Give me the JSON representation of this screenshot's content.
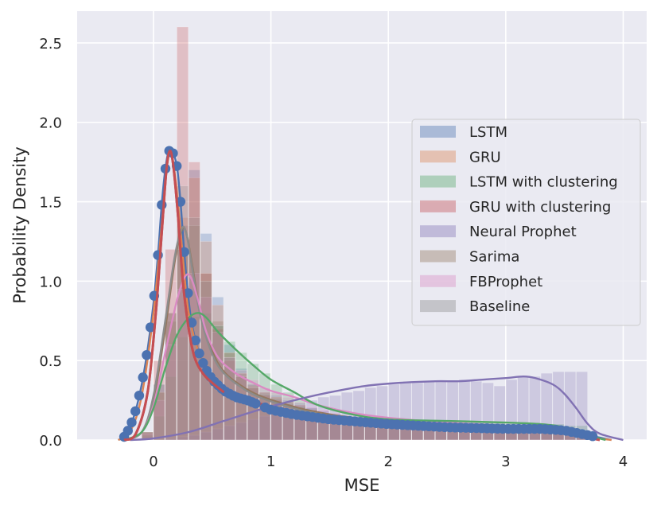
{
  "chart_data": {
    "type": "histogram-kde",
    "title": "",
    "xlabel": "MSE",
    "ylabel": "Probability Density",
    "xlim": [
      -0.65,
      4.2
    ],
    "ylim": [
      0,
      2.7
    ],
    "xticks": [
      0,
      1,
      2,
      3,
      4
    ],
    "yticks": [
      0.0,
      0.5,
      1.0,
      1.5,
      2.0,
      2.5
    ],
    "xtick_labels": [
      "0",
      "1",
      "2",
      "3",
      "4"
    ],
    "ytick_labels": [
      "0.0",
      "0.5",
      "1.0",
      "1.5",
      "2.0",
      "2.5"
    ],
    "grid": true,
    "background": "#eaeaf2",
    "legend_position": "center-right",
    "bin_width": 0.1,
    "series": [
      {
        "name": "LSTM",
        "color": "#4c72b0",
        "markers": true,
        "kde": [
          [
            -0.3,
            0.0
          ],
          [
            -0.25,
            0.02
          ],
          [
            -0.2,
            0.08
          ],
          [
            -0.15,
            0.19
          ],
          [
            -0.1,
            0.35
          ],
          [
            -0.05,
            0.57
          ],
          [
            0.0,
            0.86
          ],
          [
            0.04,
            1.18
          ],
          [
            0.07,
            1.48
          ],
          [
            0.1,
            1.7
          ],
          [
            0.13,
            1.82
          ],
          [
            0.16,
            1.82
          ],
          [
            0.2,
            1.72
          ],
          [
            0.23,
            1.5
          ],
          [
            0.26,
            1.2
          ],
          [
            0.29,
            0.95
          ],
          [
            0.32,
            0.76
          ],
          [
            0.36,
            0.62
          ],
          [
            0.4,
            0.52
          ],
          [
            0.45,
            0.44
          ],
          [
            0.5,
            0.38
          ],
          [
            0.6,
            0.31
          ],
          [
            0.7,
            0.27
          ],
          [
            0.8,
            0.25
          ],
          [
            0.9,
            0.22
          ],
          [
            1.0,
            0.19
          ],
          [
            1.2,
            0.16
          ],
          [
            1.5,
            0.13
          ],
          [
            2.0,
            0.1
          ],
          [
            2.5,
            0.08
          ],
          [
            3.0,
            0.07
          ],
          [
            3.3,
            0.07
          ],
          [
            3.5,
            0.06
          ],
          [
            3.7,
            0.03
          ],
          [
            3.9,
            0.0
          ]
        ],
        "hist": [
          0.05,
          0.35,
          0.8,
          1.35,
          1.7,
          1.3,
          0.9,
          0.6,
          0.45,
          0.35,
          0.3,
          0.28,
          0.25,
          0.23,
          0.2,
          0.18,
          0.16,
          0.15,
          0.13,
          0.12,
          0.11,
          0.1,
          0.1,
          0.09,
          0.09,
          0.08,
          0.08,
          0.08,
          0.07,
          0.07,
          0.07,
          0.07,
          0.07,
          0.06,
          0.06,
          0.06,
          0.06,
          0.06
        ]
      },
      {
        "name": "GRU",
        "color": "#dd8452",
        "markers": false,
        "kde": [
          [
            -0.3,
            0.0
          ],
          [
            -0.2,
            0.05
          ],
          [
            -0.1,
            0.28
          ],
          [
            0.0,
            0.8
          ],
          [
            0.07,
            1.35
          ],
          [
            0.12,
            1.75
          ],
          [
            0.16,
            1.78
          ],
          [
            0.2,
            1.55
          ],
          [
            0.25,
            1.15
          ],
          [
            0.3,
            0.8
          ],
          [
            0.4,
            0.52
          ],
          [
            0.5,
            0.4
          ],
          [
            0.6,
            0.33
          ],
          [
            0.8,
            0.26
          ],
          [
            1.0,
            0.2
          ],
          [
            1.3,
            0.15
          ],
          [
            1.7,
            0.12
          ],
          [
            2.2,
            0.1
          ],
          [
            2.7,
            0.09
          ],
          [
            3.2,
            0.08
          ],
          [
            3.5,
            0.06
          ],
          [
            3.7,
            0.02
          ],
          [
            3.9,
            0.0
          ]
        ],
        "hist": [
          0.05,
          0.3,
          0.8,
          1.4,
          1.65,
          1.25,
          0.85,
          0.55,
          0.42,
          0.34,
          0.3,
          0.27,
          0.24,
          0.22,
          0.19,
          0.17,
          0.15,
          0.14,
          0.13,
          0.12,
          0.11,
          0.1,
          0.1,
          0.09,
          0.09,
          0.08,
          0.08,
          0.08,
          0.08,
          0.07,
          0.07,
          0.07,
          0.07,
          0.06,
          0.06,
          0.06,
          0.06,
          0.05
        ]
      },
      {
        "name": "LSTM with clustering",
        "color": "#55a868",
        "markers": false,
        "kde": [
          [
            -0.25,
            0.0
          ],
          [
            -0.1,
            0.05
          ],
          [
            0.0,
            0.2
          ],
          [
            0.1,
            0.45
          ],
          [
            0.2,
            0.66
          ],
          [
            0.3,
            0.77
          ],
          [
            0.38,
            0.8
          ],
          [
            0.45,
            0.77
          ],
          [
            0.55,
            0.68
          ],
          [
            0.7,
            0.57
          ],
          [
            0.85,
            0.47
          ],
          [
            1.0,
            0.38
          ],
          [
            1.2,
            0.3
          ],
          [
            1.4,
            0.22
          ],
          [
            1.7,
            0.16
          ],
          [
            2.0,
            0.13
          ],
          [
            2.5,
            0.12
          ],
          [
            3.0,
            0.11
          ],
          [
            3.3,
            0.1
          ],
          [
            3.5,
            0.08
          ],
          [
            3.7,
            0.03
          ],
          [
            3.85,
            0.0
          ]
        ],
        "hist": [
          0.03,
          0.15,
          0.4,
          0.65,
          0.78,
          0.8,
          0.72,
          0.62,
          0.55,
          0.48,
          0.42,
          0.35,
          0.3,
          0.25,
          0.2,
          0.17,
          0.15,
          0.14,
          0.13,
          0.13,
          0.12,
          0.12,
          0.12,
          0.12,
          0.12,
          0.11,
          0.11,
          0.11,
          0.11,
          0.11,
          0.11,
          0.1,
          0.1,
          0.1,
          0.1,
          0.1,
          0.09,
          0.09
        ]
      },
      {
        "name": "GRU with clustering",
        "color": "#c44e52",
        "markers": false,
        "kde": [
          [
            -0.25,
            0.0
          ],
          [
            -0.15,
            0.04
          ],
          [
            -0.05,
            0.3
          ],
          [
            0.02,
            0.8
          ],
          [
            0.07,
            1.3
          ],
          [
            0.11,
            1.7
          ],
          [
            0.14,
            1.82
          ],
          [
            0.17,
            1.72
          ],
          [
            0.21,
            1.4
          ],
          [
            0.25,
            1.0
          ],
          [
            0.3,
            0.7
          ],
          [
            0.35,
            0.52
          ],
          [
            0.42,
            0.42
          ],
          [
            0.5,
            0.36
          ],
          [
            0.6,
            0.3
          ],
          [
            0.75,
            0.26
          ],
          [
            0.9,
            0.23
          ],
          [
            1.1,
            0.19
          ],
          [
            1.3,
            0.16
          ],
          [
            1.6,
            0.12
          ],
          [
            2.0,
            0.1
          ],
          [
            2.5,
            0.08
          ],
          [
            3.0,
            0.07
          ],
          [
            3.4,
            0.06
          ],
          [
            3.6,
            0.03
          ],
          [
            3.8,
            0.0
          ]
        ],
        "hist": [
          0.05,
          0.5,
          1.2,
          2.6,
          1.75,
          1.05,
          0.7,
          0.5,
          0.4,
          0.33,
          0.28,
          0.25,
          0.22,
          0.2,
          0.18,
          0.16,
          0.14,
          0.13,
          0.12,
          0.11,
          0.1,
          0.1,
          0.09,
          0.09,
          0.08,
          0.08,
          0.08,
          0.07,
          0.07,
          0.07,
          0.07,
          0.06,
          0.06,
          0.06,
          0.06,
          0.05,
          0.05,
          0.05
        ]
      },
      {
        "name": "Neural Prophet",
        "color": "#8172b3",
        "markers": false,
        "kde": [
          [
            -0.2,
            0.0
          ],
          [
            0.0,
            0.01
          ],
          [
            0.3,
            0.05
          ],
          [
            0.6,
            0.12
          ],
          [
            0.9,
            0.19
          ],
          [
            1.2,
            0.25
          ],
          [
            1.5,
            0.3
          ],
          [
            1.8,
            0.34
          ],
          [
            2.1,
            0.36
          ],
          [
            2.4,
            0.37
          ],
          [
            2.6,
            0.37
          ],
          [
            2.8,
            0.38
          ],
          [
            3.0,
            0.39
          ],
          [
            3.15,
            0.4
          ],
          [
            3.25,
            0.39
          ],
          [
            3.4,
            0.35
          ],
          [
            3.5,
            0.29
          ],
          [
            3.6,
            0.2
          ],
          [
            3.7,
            0.1
          ],
          [
            3.8,
            0.04
          ],
          [
            4.0,
            0.0
          ]
        ],
        "hist": [
          0.0,
          0.0,
          0.01,
          0.02,
          0.03,
          0.05,
          0.07,
          0.09,
          0.11,
          0.13,
          0.15,
          0.18,
          0.2,
          0.22,
          0.25,
          0.27,
          0.28,
          0.3,
          0.31,
          0.33,
          0.34,
          0.35,
          0.36,
          0.36,
          0.37,
          0.37,
          0.37,
          0.38,
          0.37,
          0.36,
          0.34,
          0.38,
          0.4,
          0.4,
          0.42,
          0.43,
          0.43,
          0.43
        ]
      },
      {
        "name": "Sarima",
        "color": "#937860",
        "markers": false,
        "kde": [
          [
            -0.25,
            0.0
          ],
          [
            -0.1,
            0.05
          ],
          [
            0.0,
            0.25
          ],
          [
            0.1,
            0.7
          ],
          [
            0.18,
            1.12
          ],
          [
            0.24,
            1.32
          ],
          [
            0.28,
            1.3
          ],
          [
            0.33,
            1.1
          ],
          [
            0.4,
            0.8
          ],
          [
            0.5,
            0.56
          ],
          [
            0.6,
            0.43
          ],
          [
            0.75,
            0.34
          ],
          [
            0.9,
            0.28
          ],
          [
            1.1,
            0.23
          ],
          [
            1.3,
            0.19
          ],
          [
            1.6,
            0.15
          ],
          [
            2.0,
            0.12
          ],
          [
            2.5,
            0.1
          ],
          [
            3.0,
            0.09
          ],
          [
            3.4,
            0.07
          ],
          [
            3.6,
            0.03
          ],
          [
            3.8,
            0.0
          ]
        ],
        "hist": [
          0.05,
          0.3,
          0.75,
          1.2,
          1.35,
          1.05,
          0.75,
          0.55,
          0.42,
          0.35,
          0.3,
          0.27,
          0.24,
          0.22,
          0.19,
          0.17,
          0.15,
          0.14,
          0.13,
          0.12,
          0.11,
          0.11,
          0.1,
          0.1,
          0.1,
          0.09,
          0.09,
          0.09,
          0.09,
          0.08,
          0.08,
          0.08,
          0.08,
          0.07,
          0.07,
          0.07,
          0.06,
          0.06
        ]
      },
      {
        "name": "FBProphet",
        "color": "#da8bc3",
        "markers": false,
        "kde": [
          [
            -0.25,
            0.0
          ],
          [
            -0.1,
            0.05
          ],
          [
            0.0,
            0.22
          ],
          [
            0.1,
            0.55
          ],
          [
            0.2,
            0.88
          ],
          [
            0.27,
            1.03
          ],
          [
            0.32,
            1.02
          ],
          [
            0.38,
            0.88
          ],
          [
            0.45,
            0.68
          ],
          [
            0.55,
            0.52
          ],
          [
            0.7,
            0.42
          ],
          [
            0.85,
            0.36
          ],
          [
            1.0,
            0.31
          ],
          [
            1.2,
            0.27
          ],
          [
            1.4,
            0.22
          ],
          [
            1.7,
            0.17
          ],
          [
            2.0,
            0.14
          ],
          [
            2.5,
            0.11
          ],
          [
            3.0,
            0.09
          ],
          [
            3.4,
            0.07
          ],
          [
            3.6,
            0.03
          ],
          [
            3.8,
            0.0
          ]
        ],
        "hist": [
          0.04,
          0.25,
          0.6,
          0.95,
          1.05,
          0.9,
          0.68,
          0.52,
          0.44,
          0.38,
          0.33,
          0.3,
          0.27,
          0.24,
          0.21,
          0.19,
          0.17,
          0.15,
          0.14,
          0.13,
          0.12,
          0.11,
          0.11,
          0.1,
          0.1,
          0.09,
          0.09,
          0.09,
          0.09,
          0.08,
          0.08,
          0.08,
          0.08,
          0.07,
          0.07,
          0.07,
          0.06,
          0.06
        ]
      },
      {
        "name": "Baseline",
        "color": "#8c8c8c",
        "markers": false,
        "kde": [
          [
            -0.25,
            0.0
          ],
          [
            -0.1,
            0.05
          ],
          [
            0.0,
            0.28
          ],
          [
            0.1,
            0.75
          ],
          [
            0.18,
            1.15
          ],
          [
            0.24,
            1.33
          ],
          [
            0.28,
            1.3
          ],
          [
            0.33,
            1.08
          ],
          [
            0.4,
            0.78
          ],
          [
            0.5,
            0.54
          ],
          [
            0.6,
            0.42
          ],
          [
            0.75,
            0.33
          ],
          [
            0.9,
            0.27
          ],
          [
            1.1,
            0.22
          ],
          [
            1.3,
            0.18
          ],
          [
            1.6,
            0.14
          ],
          [
            2.0,
            0.11
          ],
          [
            2.5,
            0.1
          ],
          [
            3.0,
            0.09
          ],
          [
            3.4,
            0.07
          ],
          [
            3.6,
            0.03
          ],
          [
            3.8,
            0.0
          ]
        ],
        "hist": [
          0.05,
          0.35,
          0.8,
          1.6,
          1.4,
          1.0,
          0.72,
          0.52,
          0.4,
          0.33,
          0.29,
          0.26,
          0.23,
          0.21,
          0.18,
          0.16,
          0.15,
          0.14,
          0.13,
          0.12,
          0.11,
          0.11,
          0.1,
          0.1,
          0.1,
          0.09,
          0.09,
          0.09,
          0.09,
          0.08,
          0.08,
          0.08,
          0.08,
          0.07,
          0.07,
          0.07,
          0.06,
          0.06
        ]
      }
    ]
  }
}
